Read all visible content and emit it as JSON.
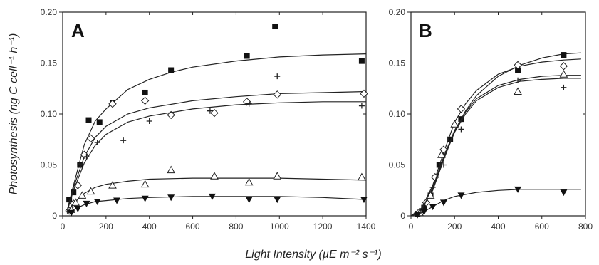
{
  "figure": {
    "ylabel": "Photosynthesis (ng C cell⁻¹ h⁻¹)",
    "xlabel": "Light Intensity (µE m⁻² s⁻¹)"
  },
  "chart_data": [
    {
      "type": "scatter",
      "panel_label": "A",
      "xlim": [
        0,
        1400
      ],
      "ylim": [
        0,
        0.2
      ],
      "x_ticks": [
        "0",
        "200",
        "400",
        "600",
        "800",
        "1000",
        "1200",
        "1400"
      ],
      "y_ticks": [
        "0",
        "0.05",
        "0.10",
        "0.15",
        "0.20"
      ],
      "x_tick_values": [
        0,
        200,
        400,
        600,
        800,
        1000,
        1200,
        1400
      ],
      "y_tick_values": [
        0,
        0.05,
        0.1,
        0.15,
        0.2
      ],
      "grid": false,
      "series": [
        {
          "marker": "filled-square",
          "points": [
            [
              30,
              0.016
            ],
            [
              50,
              0.023
            ],
            [
              80,
              0.05
            ],
            [
              120,
              0.094
            ],
            [
              170,
              0.092
            ],
            [
              230,
              0.111
            ],
            [
              380,
              0.121
            ],
            [
              500,
              0.143
            ],
            [
              850,
              0.157
            ],
            [
              980,
              0.186
            ],
            [
              1380,
              0.152
            ]
          ],
          "curve": [
            [
              20,
              0.005
            ],
            [
              50,
              0.03
            ],
            [
              100,
              0.07
            ],
            [
              150,
              0.093
            ],
            [
              200,
              0.105
            ],
            [
              300,
              0.124
            ],
            [
              400,
              0.134
            ],
            [
              500,
              0.141
            ],
            [
              600,
              0.146
            ],
            [
              800,
              0.152
            ],
            [
              1000,
              0.156
            ],
            [
              1200,
              0.158
            ],
            [
              1400,
              0.159
            ]
          ]
        },
        {
          "marker": "open-diamond",
          "points": [
            [
              30,
              0.005
            ],
            [
              50,
              0.012
            ],
            [
              70,
              0.03
            ],
            [
              100,
              0.06
            ],
            [
              130,
              0.076
            ],
            [
              230,
              0.11
            ],
            [
              380,
              0.113
            ],
            [
              500,
              0.099
            ],
            [
              700,
              0.101
            ],
            [
              850,
              0.112
            ],
            [
              990,
              0.119
            ],
            [
              1390,
              0.12
            ]
          ],
          "curve": [
            [
              20,
              0.005
            ],
            [
              50,
              0.028
            ],
            [
              100,
              0.058
            ],
            [
              150,
              0.077
            ],
            [
              200,
              0.088
            ],
            [
              300,
              0.1
            ],
            [
              400,
              0.106
            ],
            [
              600,
              0.113
            ],
            [
              800,
              0.117
            ],
            [
              1000,
              0.12
            ],
            [
              1200,
              0.121
            ],
            [
              1400,
              0.122
            ]
          ]
        },
        {
          "marker": "plus",
          "points": [
            [
              80,
              0.051
            ],
            [
              110,
              0.058
            ],
            [
              160,
              0.072
            ],
            [
              280,
              0.074
            ],
            [
              400,
              0.093
            ],
            [
              680,
              0.103
            ],
            [
              860,
              0.11
            ],
            [
              990,
              0.137
            ],
            [
              1380,
              0.108
            ]
          ],
          "curve": [
            [
              20,
              0.004
            ],
            [
              50,
              0.025
            ],
            [
              100,
              0.052
            ],
            [
              150,
              0.069
            ],
            [
              200,
              0.08
            ],
            [
              300,
              0.092
            ],
            [
              400,
              0.098
            ],
            [
              600,
              0.105
            ],
            [
              800,
              0.109
            ],
            [
              1000,
              0.111
            ],
            [
              1200,
              0.112
            ],
            [
              1400,
              0.112
            ]
          ]
        },
        {
          "marker": "open-triangle",
          "points": [
            [
              40,
              0.006
            ],
            [
              60,
              0.013
            ],
            [
              90,
              0.02
            ],
            [
              130,
              0.024
            ],
            [
              230,
              0.03
            ],
            [
              380,
              0.031
            ],
            [
              500,
              0.045
            ],
            [
              700,
              0.039
            ],
            [
              860,
              0.033
            ],
            [
              990,
              0.039
            ],
            [
              1380,
              0.038
            ]
          ],
          "curve": [
            [
              20,
              0.003
            ],
            [
              50,
              0.012
            ],
            [
              100,
              0.022
            ],
            [
              150,
              0.028
            ],
            [
              200,
              0.031
            ],
            [
              300,
              0.034
            ],
            [
              400,
              0.036
            ],
            [
              600,
              0.037
            ],
            [
              800,
              0.037
            ],
            [
              1000,
              0.037
            ],
            [
              1200,
              0.036
            ],
            [
              1400,
              0.035
            ]
          ]
        },
        {
          "marker": "filled-inverted-triangle",
          "points": [
            [
              40,
              0.003
            ],
            [
              70,
              0.007
            ],
            [
              110,
              0.012
            ],
            [
              160,
              0.014
            ],
            [
              250,
              0.015
            ],
            [
              380,
              0.017
            ],
            [
              500,
              0.018
            ],
            [
              690,
              0.019
            ],
            [
              860,
              0.016
            ],
            [
              990,
              0.016
            ],
            [
              1390,
              0.016
            ]
          ],
          "curve": [
            [
              20,
              0.002
            ],
            [
              50,
              0.006
            ],
            [
              100,
              0.011
            ],
            [
              150,
              0.014
            ],
            [
              200,
              0.015
            ],
            [
              300,
              0.017
            ],
            [
              400,
              0.018
            ],
            [
              600,
              0.019
            ],
            [
              800,
              0.019
            ],
            [
              1000,
              0.019
            ],
            [
              1200,
              0.018
            ],
            [
              1400,
              0.016
            ]
          ]
        }
      ]
    },
    {
      "type": "scatter",
      "panel_label": "B",
      "xlim": [
        0,
        800
      ],
      "ylim": [
        0,
        0.2
      ],
      "x_ticks": [
        "0",
        "200",
        "400",
        "600",
        "800"
      ],
      "y_ticks": [
        "0",
        "0.05",
        "0.10",
        "0.15",
        "0.20"
      ],
      "x_tick_values": [
        0,
        200,
        400,
        600,
        800
      ],
      "y_tick_values": [
        0,
        0.05,
        0.1,
        0.15,
        0.2
      ],
      "grid": false,
      "series": [
        {
          "marker": "filled-square",
          "points": [
            [
              30,
              0.002
            ],
            [
              60,
              0.008
            ],
            [
              90,
              0.02
            ],
            [
              130,
              0.05
            ],
            [
              180,
              0.075
            ],
            [
              230,
              0.095
            ],
            [
              490,
              0.143
            ],
            [
              700,
              0.158
            ]
          ],
          "curve": [
            [
              0,
              0
            ],
            [
              50,
              0.006
            ],
            [
              100,
              0.025
            ],
            [
              150,
              0.055
            ],
            [
              200,
              0.083
            ],
            [
              250,
              0.103
            ],
            [
              300,
              0.118
            ],
            [
              400,
              0.137
            ],
            [
              500,
              0.148
            ],
            [
              600,
              0.155
            ],
            [
              700,
              0.159
            ],
            [
              780,
              0.16
            ]
          ]
        },
        {
          "marker": "open-diamond",
          "points": [
            [
              40,
              0.004
            ],
            [
              70,
              0.013
            ],
            [
              110,
              0.038
            ],
            [
              150,
              0.065
            ],
            [
              230,
              0.105
            ],
            [
              490,
              0.148
            ],
            [
              700,
              0.147
            ]
          ],
          "curve": [
            [
              0,
              0
            ],
            [
              50,
              0.008
            ],
            [
              100,
              0.03
            ],
            [
              150,
              0.062
            ],
            [
              200,
              0.092
            ],
            [
              250,
              0.11
            ],
            [
              300,
              0.123
            ],
            [
              400,
              0.139
            ],
            [
              500,
              0.147
            ],
            [
              600,
              0.151
            ],
            [
              700,
              0.153
            ],
            [
              780,
              0.154
            ]
          ]
        },
        {
          "marker": "plus",
          "points": [
            [
              50,
              0.006
            ],
            [
              100,
              0.028
            ],
            [
              150,
              0.05
            ],
            [
              230,
              0.085
            ],
            [
              490,
              0.133
            ],
            [
              700,
              0.126
            ]
          ],
          "curve": [
            [
              0,
              0
            ],
            [
              50,
              0.006
            ],
            [
              100,
              0.027
            ],
            [
              150,
              0.056
            ],
            [
              200,
              0.082
            ],
            [
              250,
              0.1
            ],
            [
              300,
              0.113
            ],
            [
              400,
              0.126
            ],
            [
              500,
              0.132
            ],
            [
              600,
              0.134
            ],
            [
              700,
              0.135
            ],
            [
              780,
              0.135
            ]
          ]
        },
        {
          "marker": "open-triangle",
          "points": [
            [
              40,
              0.003
            ],
            [
              90,
              0.02
            ],
            [
              140,
              0.06
            ],
            [
              200,
              0.09
            ],
            [
              490,
              0.122
            ],
            [
              700,
              0.139
            ]
          ],
          "curve": [
            [
              0,
              0
            ],
            [
              50,
              0.006
            ],
            [
              100,
              0.028
            ],
            [
              150,
              0.058
            ],
            [
              200,
              0.084
            ],
            [
              250,
              0.102
            ],
            [
              300,
              0.115
            ],
            [
              400,
              0.128
            ],
            [
              500,
              0.134
            ],
            [
              600,
              0.137
            ],
            [
              700,
              0.138
            ],
            [
              780,
              0.138
            ]
          ]
        },
        {
          "marker": "filled-inverted-triangle",
          "points": [
            [
              30,
              0.001
            ],
            [
              60,
              0.004
            ],
            [
              100,
              0.009
            ],
            [
              150,
              0.013
            ],
            [
              230,
              0.02
            ],
            [
              490,
              0.026
            ],
            [
              700,
              0.023
            ]
          ],
          "curve": [
            [
              0,
              0
            ],
            [
              50,
              0.003
            ],
            [
              100,
              0.009
            ],
            [
              150,
              0.015
            ],
            [
              200,
              0.019
            ],
            [
              300,
              0.023
            ],
            [
              400,
              0.025
            ],
            [
              500,
              0.026
            ],
            [
              600,
              0.026
            ],
            [
              700,
              0.026
            ],
            [
              780,
              0.026
            ]
          ]
        }
      ]
    }
  ]
}
